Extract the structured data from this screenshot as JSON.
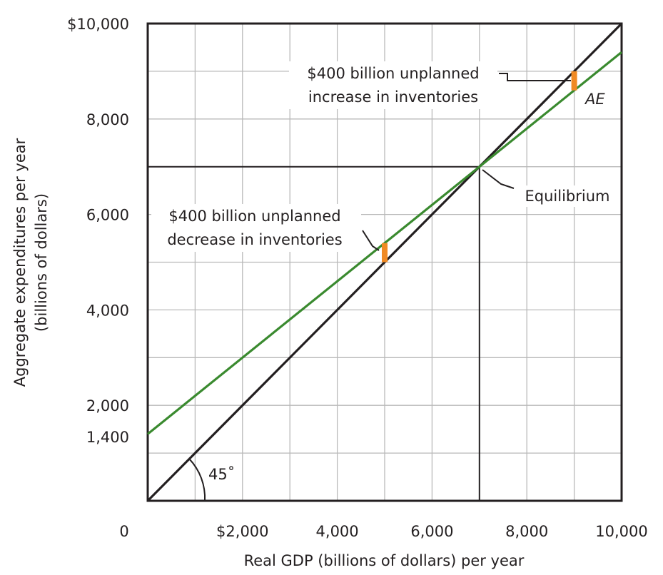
{
  "chart_data": {
    "type": "line",
    "title": "",
    "xlabel": "Real GDP (billions of dollars) per year",
    "ylabel": "Aggregate expenditures per year",
    "ylabel_line2": "(billions of dollars)",
    "xlim": [
      0,
      10000
    ],
    "ylim": [
      0,
      10000
    ],
    "grid": true,
    "x_ticks": [
      {
        "value": 0,
        "label": "0"
      },
      {
        "value": 2000,
        "label": "$2,000"
      },
      {
        "value": 4000,
        "label": "4,000"
      },
      {
        "value": 6000,
        "label": "6,000"
      },
      {
        "value": 8000,
        "label": "8,000"
      },
      {
        "value": 10000,
        "label": "10,000"
      }
    ],
    "y_ticks": [
      {
        "value": 1400,
        "label": "1,400"
      },
      {
        "value": 2000,
        "label": "2,000"
      },
      {
        "value": 4000,
        "label": "4,000"
      },
      {
        "value": 6000,
        "label": "6,000"
      },
      {
        "value": 8000,
        "label": "8,000"
      },
      {
        "value": 10000,
        "label": "$10,000"
      }
    ],
    "series": [
      {
        "name": "",
        "color": "#231f20",
        "x": [
          0,
          10000
        ],
        "y": [
          0,
          10000
        ]
      },
      {
        "name": "AE",
        "color": "#3a8a2f",
        "x": [
          0,
          10000
        ],
        "y": [
          1400,
          9400
        ]
      }
    ],
    "equilibrium": {
      "x": 7000,
      "y": 7000
    },
    "gaps": [
      {
        "x": 5000,
        "y_from": 5000,
        "y_to": 5400,
        "color": "#f08a24"
      },
      {
        "x": 9000,
        "y_from": 8600,
        "y_to": 9000,
        "color": "#f08a24"
      }
    ],
    "annotations": {
      "top_line1": "$400 billion unplanned",
      "top_line2": "increase in inventories",
      "mid_line1": "$400 billion unplanned",
      "mid_line2": "decrease in inventories",
      "equilibrium": "Equilibrium",
      "ae": "AE",
      "angle": "45˚"
    }
  }
}
